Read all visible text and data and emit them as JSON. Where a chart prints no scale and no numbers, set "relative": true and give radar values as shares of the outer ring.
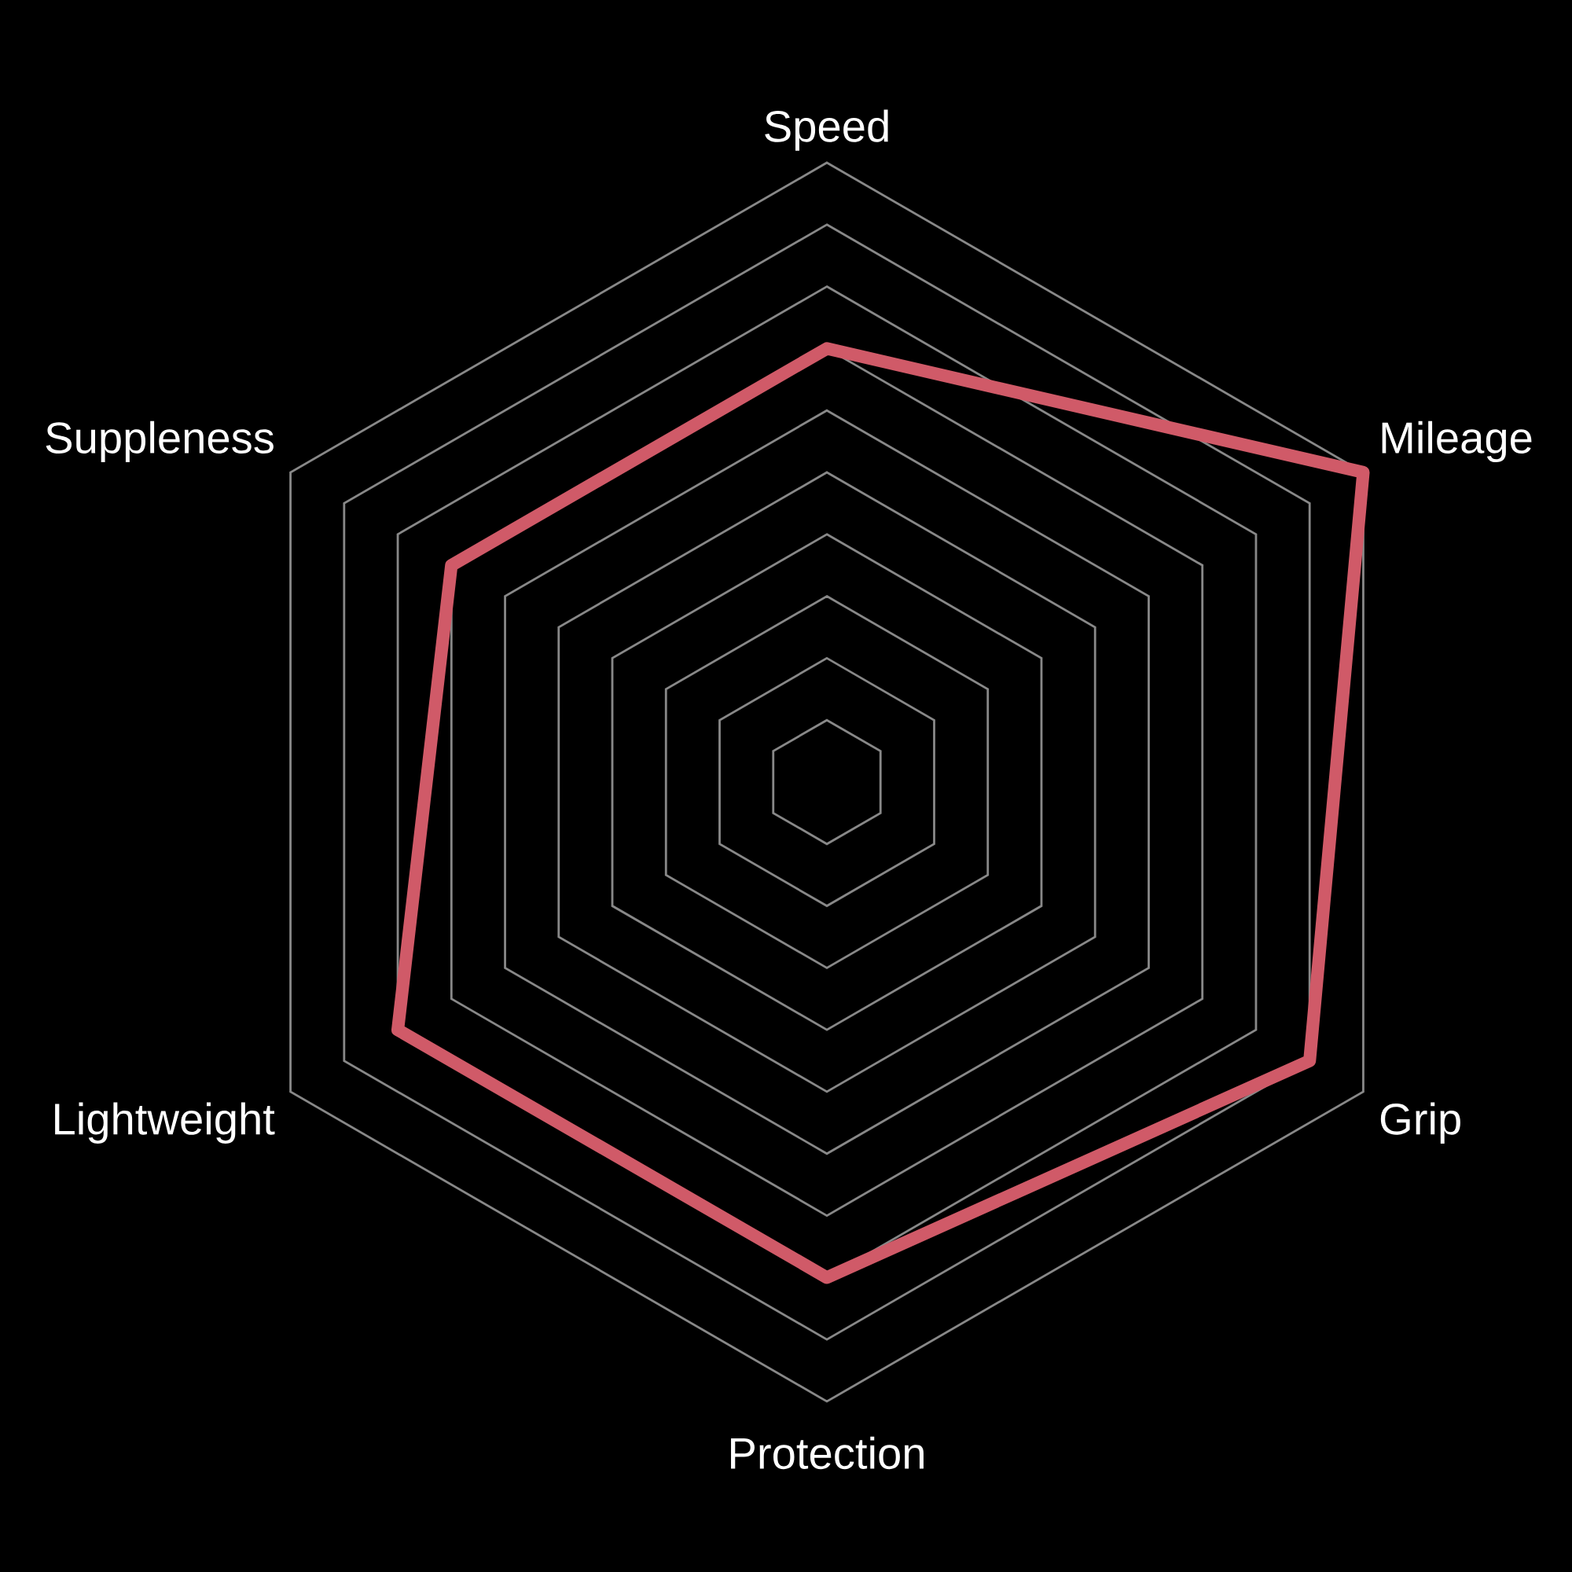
{
  "chart_data": {
    "type": "radar",
    "relative": true,
    "categories": [
      "Speed",
      "Mileage",
      "Grip",
      "Protection",
      "Lightweight",
      "Suppleness"
    ],
    "series": [
      {
        "color": "#d05a68",
        "values": [
          0.7,
          1.0,
          0.9,
          0.8,
          0.8,
          0.7
        ]
      }
    ],
    "grid": true
  }
}
